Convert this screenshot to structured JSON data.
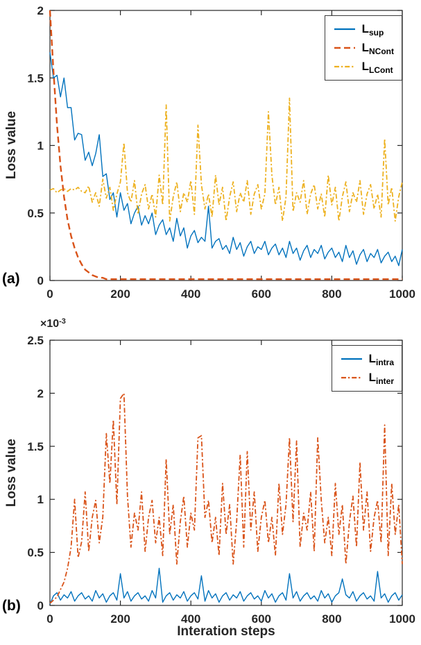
{
  "panels": {
    "a_label": "(a)",
    "b_label": "(b)"
  },
  "colors": {
    "blue": "#0072BD",
    "red_orange": "#D95319",
    "yellow": "#EDB120",
    "axis": "#262626"
  },
  "chart_data": [
    {
      "id": "a",
      "type": "line",
      "title": "",
      "xlabel": "",
      "ylabel": "Loss value",
      "xlim": [
        0,
        1000
      ],
      "ylim": [
        0,
        2
      ],
      "grid": false,
      "legend_position": "top-right",
      "x_ticks": [
        0,
        200,
        400,
        600,
        800,
        1000
      ],
      "x_tick_labels": [
        "0",
        "200",
        "400",
        "600",
        "800",
        "1000"
      ],
      "y_ticks": [
        0,
        0.5,
        1,
        1.5,
        2
      ],
      "y_tick_labels": [
        "0",
        "0.5",
        "1",
        "1.5",
        "2"
      ],
      "x_step": 10,
      "series": [
        {
          "name": "L_sup",
          "label_main": "L",
          "label_sub": "sup",
          "color": "#0072BD",
          "line_style": "solid",
          "values": [
            1.69,
            1.5,
            1.52,
            1.36,
            1.5,
            1.28,
            1.28,
            1.04,
            1.09,
            1.08,
            0.89,
            0.95,
            0.85,
            0.94,
            1.08,
            0.77,
            0.79,
            0.6,
            0.65,
            0.47,
            0.65,
            0.52,
            0.57,
            0.42,
            0.5,
            0.55,
            0.41,
            0.48,
            0.42,
            0.5,
            0.34,
            0.41,
            0.45,
            0.34,
            0.39,
            0.29,
            0.46,
            0.33,
            0.39,
            0.24,
            0.33,
            0.37,
            0.28,
            0.32,
            0.29,
            0.55,
            0.24,
            0.29,
            0.31,
            0.23,
            0.26,
            0.2,
            0.32,
            0.23,
            0.28,
            0.18,
            0.25,
            0.29,
            0.2,
            0.25,
            0.23,
            0.29,
            0.19,
            0.24,
            0.27,
            0.19,
            0.24,
            0.17,
            0.29,
            0.2,
            0.24,
            0.15,
            0.22,
            0.26,
            0.17,
            0.23,
            0.2,
            0.26,
            0.16,
            0.21,
            0.24,
            0.17,
            0.21,
            0.14,
            0.26,
            0.17,
            0.22,
            0.12,
            0.19,
            0.23,
            0.14,
            0.2,
            0.17,
            0.23,
            0.13,
            0.18,
            0.21,
            0.14,
            0.18,
            0.11,
            0.23
          ]
        },
        {
          "name": "L_NCont",
          "label_main": "L",
          "label_sub": "NCont",
          "color": "#D95319",
          "line_style": "dashed",
          "values": [
            2.0,
            1.55,
            1.15,
            0.85,
            0.62,
            0.45,
            0.33,
            0.24,
            0.17,
            0.12,
            0.08,
            0.06,
            0.04,
            0.03,
            0.02,
            0.02,
            0.01,
            0.01,
            0.01,
            0.01,
            0.01,
            0.01,
            0.01,
            0.01,
            0.01,
            0.01,
            0.01,
            0.01,
            0.01,
            0.01,
            0.01,
            0.01,
            0.01,
            0.01,
            0.01,
            0.01,
            0.01,
            0.01,
            0.01,
            0.01,
            0.01,
            0.01,
            0.01,
            0.01,
            0.01,
            0.01,
            0.01,
            0.01,
            0.01,
            0.01,
            0.01,
            0.01,
            0.01,
            0.01,
            0.01,
            0.01,
            0.01,
            0.01,
            0.01,
            0.01,
            0.01,
            0.01,
            0.01,
            0.01,
            0.01,
            0.01,
            0.01,
            0.01,
            0.01,
            0.01,
            0.01,
            0.01,
            0.01,
            0.01,
            0.01,
            0.01,
            0.01,
            0.01,
            0.01,
            0.01,
            0.01,
            0.01,
            0.01,
            0.01,
            0.01,
            0.01,
            0.01,
            0.01,
            0.01,
            0.01,
            0.01,
            0.01,
            0.01,
            0.01,
            0.01,
            0.01,
            0.01,
            0.01,
            0.01,
            0.01,
            0.01
          ]
        },
        {
          "name": "L_LCont",
          "label_main": "L",
          "label_sub": "LCont",
          "color": "#EDB120",
          "line_style": "dash-dot",
          "values": [
            0.67,
            0.68,
            0.65,
            0.67,
            0.68,
            0.66,
            0.68,
            0.67,
            0.69,
            0.66,
            0.65,
            0.7,
            0.58,
            0.65,
            0.55,
            0.75,
            0.61,
            0.69,
            0.52,
            0.64,
            0.73,
            1.02,
            0.65,
            0.58,
            0.74,
            0.49,
            0.64,
            0.71,
            0.53,
            0.64,
            0.47,
            0.78,
            0.56,
            1.3,
            0.44,
            0.62,
            0.73,
            0.51,
            0.65,
            0.58,
            0.74,
            0.49,
            1.15,
            0.71,
            0.53,
            0.64,
            0.47,
            0.78,
            0.56,
            0.69,
            0.44,
            0.62,
            0.73,
            0.51,
            0.65,
            0.58,
            0.74,
            0.49,
            0.64,
            0.71,
            0.53,
            0.64,
            1.25,
            0.78,
            0.56,
            0.69,
            0.44,
            0.62,
            1.35,
            0.51,
            0.65,
            0.58,
            0.74,
            0.49,
            0.64,
            0.71,
            0.53,
            0.64,
            0.47,
            0.78,
            0.56,
            0.69,
            0.44,
            0.62,
            0.73,
            0.51,
            0.65,
            0.58,
            0.74,
            0.49,
            0.64,
            0.71,
            0.53,
            0.64,
            0.47,
            1.05,
            0.56,
            0.69,
            0.44,
            0.62,
            0.73
          ]
        }
      ]
    },
    {
      "id": "b",
      "type": "line",
      "title": "",
      "xlabel": "Interation steps",
      "ylabel": "Loss value",
      "y_multiplier_base": "×10",
      "y_multiplier_exp": "-3",
      "y_unit": "1e-3",
      "xlim": [
        0,
        1000
      ],
      "ylim": [
        0,
        2.5
      ],
      "grid": false,
      "legend_position": "top-right",
      "x_ticks": [
        0,
        200,
        400,
        600,
        800,
        1000
      ],
      "x_tick_labels": [
        "0",
        "200",
        "400",
        "600",
        "800",
        "1000"
      ],
      "y_ticks": [
        0,
        0.5,
        1,
        1.5,
        2,
        2.5
      ],
      "y_tick_labels": [
        "0",
        "0.5",
        "1",
        "1.5",
        "2",
        "2.5"
      ],
      "x_step": 10,
      "series": [
        {
          "name": "L_intra",
          "label_main": "L",
          "label_sub": "intra",
          "color": "#0072BD",
          "line_style": "solid",
          "values": [
            0.01,
            0.09,
            0.12,
            0.05,
            0.1,
            0.07,
            0.13,
            0.04,
            0.09,
            0.12,
            0.06,
            0.09,
            0.04,
            0.14,
            0.07,
            0.11,
            0.03,
            0.09,
            0.12,
            0.05,
            0.3,
            0.07,
            0.13,
            0.04,
            0.09,
            0.12,
            0.06,
            0.09,
            0.04,
            0.14,
            0.07,
            0.35,
            0.03,
            0.09,
            0.12,
            0.05,
            0.1,
            0.07,
            0.13,
            0.04,
            0.09,
            0.12,
            0.06,
            0.28,
            0.04,
            0.14,
            0.07,
            0.11,
            0.03,
            0.09,
            0.12,
            0.05,
            0.1,
            0.07,
            0.13,
            0.04,
            0.09,
            0.12,
            0.06,
            0.09,
            0.04,
            0.14,
            0.07,
            0.11,
            0.03,
            0.09,
            0.12,
            0.05,
            0.3,
            0.07,
            0.13,
            0.04,
            0.09,
            0.12,
            0.06,
            0.09,
            0.04,
            0.14,
            0.07,
            0.11,
            0.03,
            0.09,
            0.12,
            0.25,
            0.1,
            0.07,
            0.13,
            0.04,
            0.09,
            0.12,
            0.06,
            0.09,
            0.04,
            0.32,
            0.07,
            0.11,
            0.03,
            0.09,
            0.12,
            0.05,
            0.1
          ]
        },
        {
          "name": "L_inter",
          "label_main": "L",
          "label_sub": "inter",
          "color": "#D95319",
          "line_style": "dash-dot",
          "values": [
            0.02,
            0.05,
            0.08,
            0.15,
            0.22,
            0.35,
            0.55,
            1.0,
            0.45,
            0.6,
            1.07,
            0.51,
            0.83,
            0.99,
            0.59,
            0.83,
            1.62,
            1.15,
            1.75,
            0.95,
            1.95,
            2.0,
            1.03,
            0.55,
            0.87,
            0.71,
            1.07,
            0.51,
            0.83,
            0.99,
            0.59,
            0.83,
            0.47,
            1.38,
            0.67,
            0.95,
            0.39,
            0.79,
            1.03,
            0.55,
            0.87,
            0.71,
            1.58,
            1.6,
            0.83,
            0.99,
            0.59,
            0.83,
            0.47,
            1.15,
            0.67,
            0.95,
            0.39,
            0.79,
            1.42,
            0.55,
            1.45,
            0.71,
            1.07,
            0.51,
            0.83,
            0.99,
            0.59,
            0.83,
            0.47,
            1.15,
            0.67,
            0.95,
            1.58,
            0.79,
            1.55,
            0.55,
            0.87,
            0.71,
            1.07,
            0.51,
            1.58,
            0.99,
            0.59,
            0.83,
            0.47,
            1.15,
            0.67,
            0.95,
            0.39,
            0.79,
            1.03,
            0.55,
            1.35,
            0.71,
            1.07,
            0.51,
            0.83,
            0.99,
            0.59,
            1.7,
            0.47,
            1.15,
            0.67,
            0.95,
            0.39
          ]
        }
      ]
    }
  ]
}
